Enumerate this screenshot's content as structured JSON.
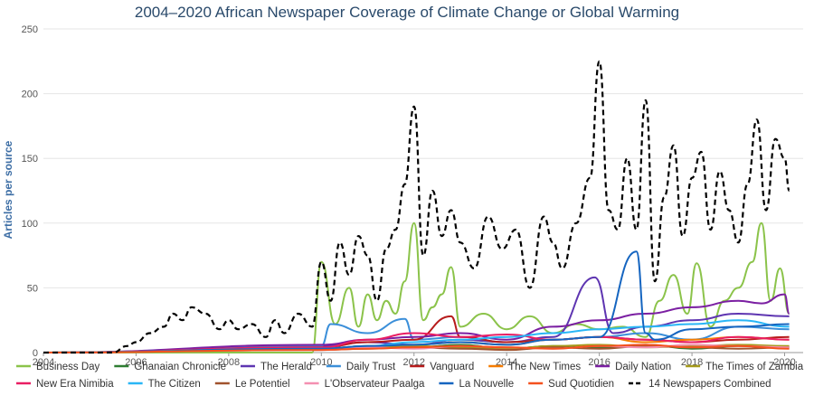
{
  "chart_data": {
    "type": "line",
    "title": "2004–2020 African Newspaper Coverage of Climate Change or Global Warming",
    "ylabel": "Articles per source",
    "xlabel": "",
    "xlim": [
      2004,
      2020.4
    ],
    "ylim": [
      0,
      250
    ],
    "x_ticks": [
      "2004",
      "2006",
      "2008",
      "2010",
      "2012",
      "2014",
      "2016",
      "2018",
      "2020"
    ],
    "y_ticks": [
      "0",
      "50",
      "100",
      "150",
      "200",
      "250"
    ],
    "grid": "horizontal",
    "legend_position": "bottom",
    "series": [
      {
        "name": "Business Day",
        "color": "#8bc34a",
        "dash": false,
        "x": [
          2004,
          2009.8,
          2010,
          2010.3,
          2010.6,
          2010.8,
          2011,
          2011.2,
          2011.4,
          2011.6,
          2011.8,
          2012,
          2012.2,
          2012.4,
          2012.6,
          2012.8,
          2013,
          2013.5,
          2014,
          2014.5,
          2015,
          2015.5,
          2016,
          2016.5,
          2017,
          2017.3,
          2017.6,
          2017.9,
          2018.1,
          2018.4,
          2018.7,
          2019,
          2019.3,
          2019.5,
          2019.7,
          2019.9,
          2020.1
        ],
        "y": [
          0,
          0,
          70,
          22,
          50,
          20,
          45,
          25,
          40,
          30,
          55,
          100,
          25,
          35,
          45,
          66,
          20,
          30,
          18,
          28,
          15,
          22,
          18,
          20,
          12,
          40,
          60,
          30,
          69,
          20,
          40,
          50,
          70,
          100,
          40,
          65,
          30
        ]
      },
      {
        "name": "Ghanaian Chronicle",
        "color": "#2e7d32",
        "dash": false,
        "x": [
          2004,
          2010,
          2011,
          2012,
          2013,
          2014,
          2015,
          2016,
          2017,
          2018,
          2019,
          2020.1
        ],
        "y": [
          0,
          3,
          5,
          4,
          6,
          3,
          5,
          4,
          6,
          3,
          5,
          4
        ]
      },
      {
        "name": "The Herald",
        "color": "#5e35b1",
        "dash": false,
        "x": [
          2004,
          2010,
          2011,
          2012,
          2013,
          2014,
          2015,
          2015.9,
          2016.3,
          2017,
          2018,
          2019,
          2020.1
        ],
        "y": [
          0,
          5,
          8,
          6,
          10,
          8,
          12,
          58,
          15,
          20,
          25,
          30,
          28
        ]
      },
      {
        "name": "Daily Trust",
        "color": "#3b8fd9",
        "dash": false,
        "x": [
          2004,
          2010,
          2010.2,
          2011,
          2011.8,
          2012,
          2013,
          2014,
          2015,
          2016,
          2017,
          2018,
          2019,
          2020.1
        ],
        "y": [
          0,
          5,
          22,
          15,
          26,
          10,
          12,
          8,
          10,
          12,
          15,
          10,
          20,
          18
        ]
      },
      {
        "name": "Vanguard",
        "color": "#b71c1c",
        "dash": false,
        "x": [
          2004,
          2010,
          2011,
          2012,
          2012.8,
          2013,
          2014,
          2015,
          2016,
          2017,
          2018,
          2019,
          2020.1
        ],
        "y": [
          0,
          4,
          8,
          10,
          28,
          12,
          8,
          10,
          12,
          10,
          8,
          10,
          12
        ]
      },
      {
        "name": "The New Times",
        "color": "#f57c00",
        "dash": false,
        "x": [
          2004,
          2010,
          2011,
          2012,
          2013,
          2014,
          2015,
          2016,
          2017,
          2018,
          2019,
          2020.1
        ],
        "y": [
          0,
          3,
          5,
          6,
          8,
          6,
          10,
          12,
          8,
          10,
          12,
          10
        ]
      },
      {
        "name": "Daily Nation",
        "color": "#7b1fa2",
        "dash": false,
        "x": [
          2004,
          2010,
          2011,
          2012,
          2013,
          2014,
          2015,
          2016,
          2017,
          2018,
          2019,
          2019.5,
          2020,
          2020.1
        ],
        "y": [
          0,
          6,
          10,
          12,
          15,
          10,
          20,
          25,
          30,
          35,
          40,
          38,
          45,
          30
        ]
      },
      {
        "name": "The Times of Zambia",
        "color": "#a59a1a",
        "dash": false,
        "x": [
          2004,
          2010,
          2011,
          2012,
          2013,
          2014,
          2015,
          2016,
          2017,
          2018,
          2019,
          2020.1
        ],
        "y": [
          0,
          3,
          4,
          5,
          4,
          3,
          5,
          6,
          4,
          5,
          6,
          5
        ]
      },
      {
        "name": "New Era Nimibia",
        "color": "#e91e63",
        "dash": false,
        "x": [
          2004,
          2010,
          2011,
          2012,
          2013,
          2014,
          2015,
          2016,
          2017,
          2018,
          2019,
          2020.1
        ],
        "y": [
          0,
          4,
          10,
          15,
          12,
          14,
          10,
          12,
          10,
          8,
          12,
          10
        ]
      },
      {
        "name": "The Citizen",
        "color": "#29b6f6",
        "dash": false,
        "x": [
          2004,
          2010,
          2011,
          2012,
          2013,
          2014,
          2015,
          2016,
          2017,
          2018,
          2019,
          2020.1
        ],
        "y": [
          0,
          3,
          5,
          8,
          10,
          12,
          15,
          18,
          20,
          22,
          25,
          20
        ]
      },
      {
        "name": "Le Potentiel",
        "color": "#a0522d",
        "dash": false,
        "x": [
          2004,
          2010,
          2011,
          2012,
          2013,
          2014,
          2015,
          2016,
          2017,
          2018,
          2019,
          2020.1
        ],
        "y": [
          0,
          2,
          3,
          4,
          3,
          2,
          4,
          3,
          5,
          4,
          3,
          4
        ]
      },
      {
        "name": "L'Observateur Paalga",
        "color": "#f48fb1",
        "dash": false,
        "x": [
          2004,
          2010,
          2011,
          2012,
          2013,
          2014,
          2015,
          2016,
          2017,
          2018,
          2019,
          2020.1
        ],
        "y": [
          0,
          2,
          4,
          3,
          5,
          4,
          3,
          5,
          4,
          6,
          5,
          4
        ]
      },
      {
        "name": "La Nouvelle",
        "color": "#1565c0",
        "dash": false,
        "x": [
          2004,
          2010,
          2011,
          2012,
          2013,
          2014,
          2015,
          2016,
          2016.8,
          2017,
          2017.2,
          2018,
          2019,
          2020.1
        ],
        "y": [
          0,
          3,
          5,
          6,
          8,
          6,
          10,
          12,
          78,
          15,
          10,
          18,
          20,
          22
        ]
      },
      {
        "name": "Sud Quotidien",
        "color": "#f4511e",
        "dash": false,
        "x": [
          2004,
          2010,
          2011,
          2012,
          2013,
          2014,
          2015,
          2016,
          2017,
          2018,
          2019,
          2020.1
        ],
        "y": [
          0,
          2,
          3,
          4,
          5,
          4,
          3,
          5,
          6,
          4,
          5,
          3
        ]
      },
      {
        "name": "14 Newspapers Combined",
        "color": "#000000",
        "dash": true,
        "x": [
          2004,
          2005.5,
          2005.8,
          2006,
          2006.3,
          2006.6,
          2006.8,
          2007,
          2007.2,
          2007.5,
          2007.8,
          2008,
          2008.2,
          2008.5,
          2008.8,
          2009,
          2009.2,
          2009.5,
          2009.8,
          2010,
          2010.2,
          2010.4,
          2010.6,
          2010.8,
          2011,
          2011.2,
          2011.4,
          2011.6,
          2011.8,
          2012,
          2012.2,
          2012.4,
          2012.6,
          2012.8,
          2013,
          2013.3,
          2013.6,
          2013.9,
          2014.2,
          2014.5,
          2014.8,
          2015,
          2015.2,
          2015.5,
          2015.8,
          2016,
          2016.2,
          2016.4,
          2016.6,
          2016.8,
          2017,
          2017.2,
          2017.4,
          2017.6,
          2017.8,
          2018,
          2018.2,
          2018.4,
          2018.6,
          2018.8,
          2019,
          2019.2,
          2019.4,
          2019.6,
          2019.8,
          2020,
          2020.1
        ],
        "y": [
          0,
          0,
          5,
          8,
          15,
          20,
          30,
          25,
          35,
          30,
          18,
          25,
          18,
          22,
          12,
          25,
          15,
          30,
          20,
          70,
          40,
          85,
          60,
          90,
          75,
          40,
          80,
          95,
          130,
          190,
          75,
          125,
          90,
          110,
          85,
          65,
          105,
          80,
          95,
          50,
          105,
          85,
          65,
          100,
          135,
          225,
          110,
          95,
          150,
          95,
          195,
          55,
          120,
          160,
          90,
          135,
          155,
          95,
          140,
          110,
          85,
          130,
          180,
          110,
          165,
          150,
          125
        ]
      }
    ]
  },
  "colors": {
    "axis_text": "#555555",
    "grid": "#e6e6e6",
    "title": "#2a4a6b",
    "ylabel": "#3d6ea5"
  }
}
